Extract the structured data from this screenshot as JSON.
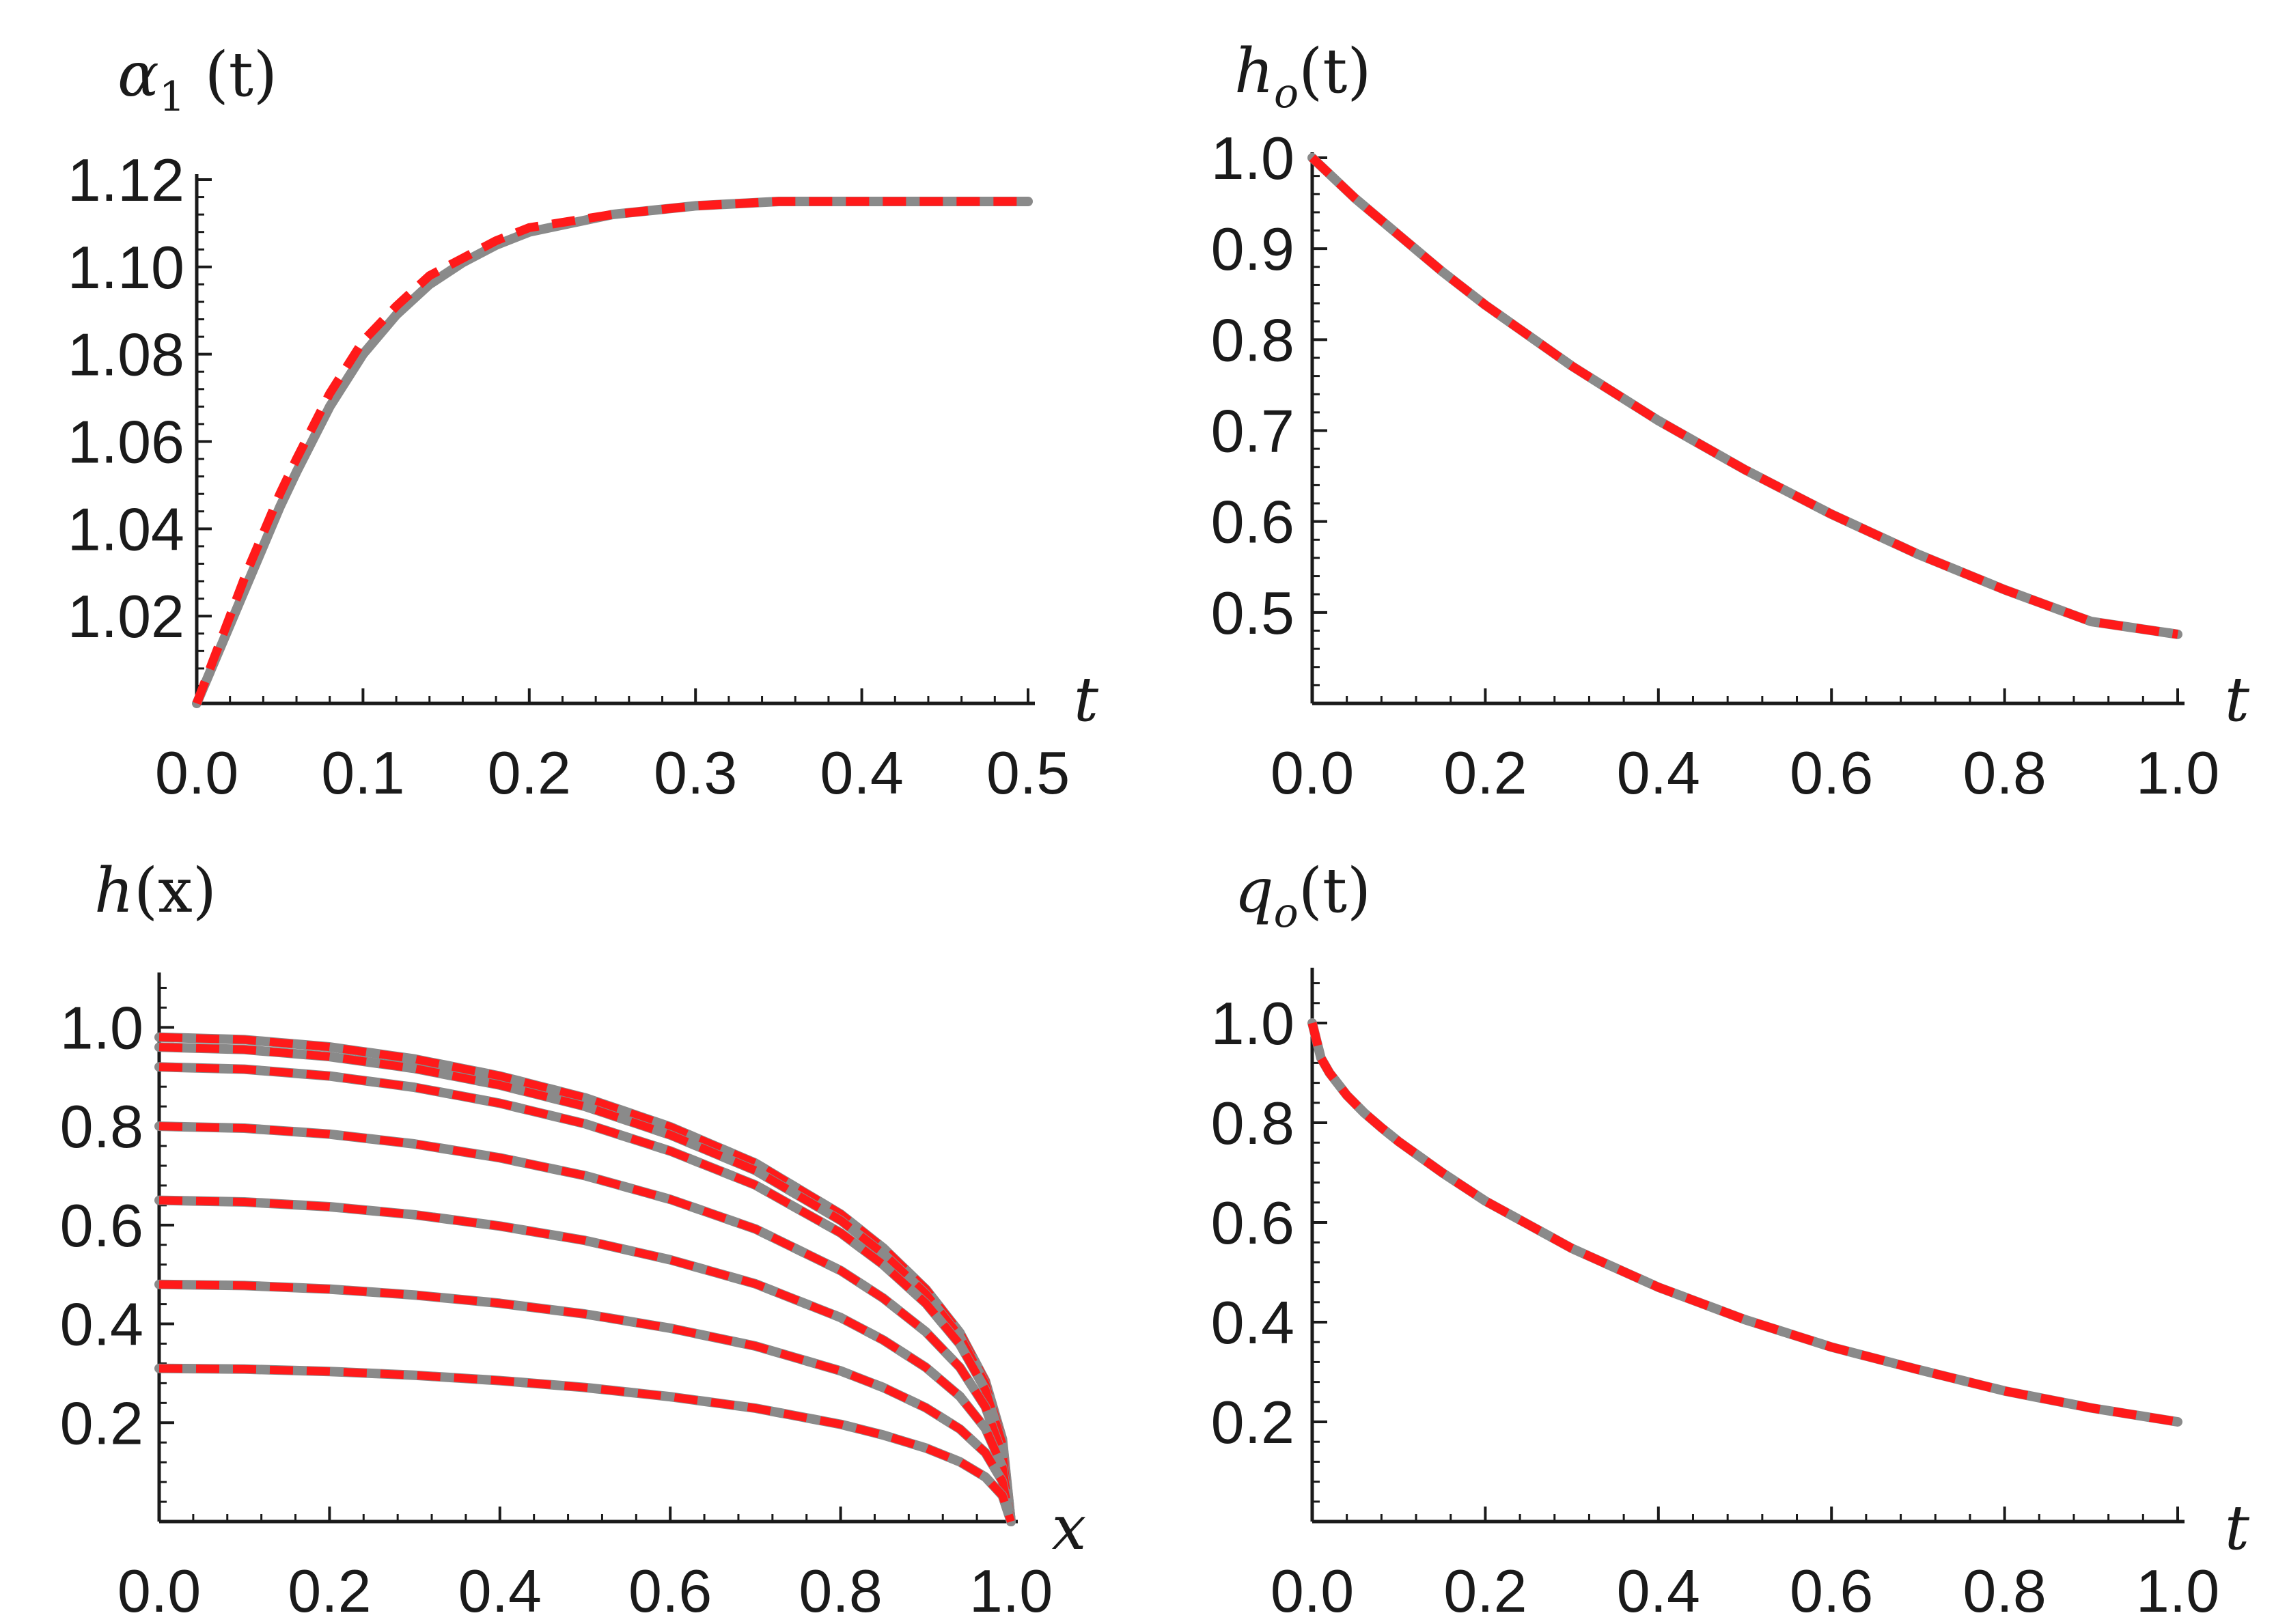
{
  "chart_data": [
    {
      "type": "line",
      "ylabel": "α1 (t)",
      "ylabel_parts": {
        "base": "α",
        "sub": "1",
        "arg": " (t)"
      },
      "xlabel": "t",
      "xlim": [
        0,
        0.5
      ],
      "ylim": [
        1.0,
        1.12
      ],
      "xticks": [
        "0.0",
        "0.1",
        "0.2",
        "0.3",
        "0.4",
        "0.5"
      ],
      "yticks": [
        "1.02",
        "1.04",
        "1.06",
        "1.08",
        "1.10",
        "1.12"
      ],
      "series": [
        {
          "style": "solid",
          "color": "#8a8a8a",
          "x": [
            0,
            0.01,
            0.02,
            0.03,
            0.04,
            0.05,
            0.06,
            0.08,
            0.1,
            0.12,
            0.14,
            0.16,
            0.18,
            0.2,
            0.25,
            0.3,
            0.35,
            0.4,
            0.45,
            0.5
          ],
          "y": [
            1.0,
            1.009,
            1.018,
            1.027,
            1.036,
            1.045,
            1.053,
            1.068,
            1.08,
            1.089,
            1.096,
            1.101,
            1.105,
            1.108,
            1.112,
            1.114,
            1.115,
            1.115,
            1.115,
            1.115
          ]
        },
        {
          "style": "dashed",
          "color": "#ff1a1a",
          "x": [
            0,
            0.01,
            0.02,
            0.03,
            0.04,
            0.05,
            0.06,
            0.08,
            0.1,
            0.12,
            0.14,
            0.16,
            0.18,
            0.2,
            0.25,
            0.3,
            0.35,
            0.4,
            0.45,
            0.5
          ],
          "y": [
            1.0,
            1.01,
            1.02,
            1.03,
            1.039,
            1.048,
            1.056,
            1.071,
            1.083,
            1.091,
            1.098,
            1.102,
            1.106,
            1.109,
            1.112,
            1.114,
            1.115,
            1.115,
            1.115,
            1.115
          ]
        }
      ]
    },
    {
      "type": "line",
      "ylabel": "ho(t)",
      "ylabel_parts": {
        "base": "h",
        "sub": "o",
        "arg": "(t)"
      },
      "xlabel": "t",
      "xlim": [
        0,
        1.0
      ],
      "ylim": [
        0.4,
        1.0
      ],
      "xticks": [
        "0.0",
        "0.2",
        "0.4",
        "0.6",
        "0.8",
        "1.0"
      ],
      "yticks": [
        "0.5",
        "0.6",
        "0.7",
        "0.8",
        "0.9",
        "1.0"
      ],
      "series": [
        {
          "style": "solid",
          "color": "#8a8a8a",
          "x": [
            0,
            0.05,
            0.1,
            0.15,
            0.2,
            0.3,
            0.4,
            0.5,
            0.6,
            0.7,
            0.8,
            0.9,
            1.0
          ],
          "y": [
            1.0,
            0.955,
            0.915,
            0.875,
            0.838,
            0.771,
            0.711,
            0.657,
            0.608,
            0.564,
            0.525,
            0.49,
            0.476
          ]
        },
        {
          "style": "dashed",
          "color": "#ff1a1a",
          "x": [
            0,
            0.05,
            0.1,
            0.15,
            0.2,
            0.3,
            0.4,
            0.5,
            0.6,
            0.7,
            0.8,
            0.9,
            1.0
          ],
          "y": [
            1.0,
            0.955,
            0.915,
            0.875,
            0.838,
            0.771,
            0.711,
            0.657,
            0.608,
            0.564,
            0.525,
            0.49,
            0.476
          ]
        }
      ]
    },
    {
      "type": "line",
      "ylabel": "h(x)",
      "ylabel_parts": {
        "base": "h",
        "sub": "",
        "arg": "(x)"
      },
      "xlabel": "x",
      "xlim": [
        0,
        1.0
      ],
      "ylim": [
        0,
        1.1
      ],
      "xticks": [
        "0.0",
        "0.2",
        "0.4",
        "0.6",
        "0.8",
        "1.0"
      ],
      "yticks": [
        "0.2",
        "0.4",
        "0.6",
        "0.8",
        "1.0"
      ],
      "profile_heights": [
        0.98,
        0.96,
        0.92,
        0.8,
        0.65,
        0.48,
        0.31
      ],
      "profile_x": [
        0,
        0.1,
        0.2,
        0.3,
        0.4,
        0.5,
        0.6,
        0.7,
        0.8,
        0.85,
        0.9,
        0.94,
        0.97,
        0.99,
        1.0
      ],
      "profile_shape": [
        1.0,
        0.995,
        0.98,
        0.955,
        0.92,
        0.875,
        0.815,
        0.74,
        0.635,
        0.565,
        0.48,
        0.39,
        0.29,
        0.17,
        0.0
      ]
    },
    {
      "type": "line",
      "ylabel": "qo(t)",
      "ylabel_parts": {
        "base": "q",
        "sub": "o",
        "arg": "(t)"
      },
      "xlabel": "t",
      "xlim": [
        0,
        1.0
      ],
      "ylim": [
        0,
        1.1
      ],
      "xticks": [
        "0.0",
        "0.2",
        "0.4",
        "0.6",
        "0.8",
        "1.0"
      ],
      "yticks": [
        "0.2",
        "0.4",
        "0.6",
        "0.8",
        "1.0"
      ],
      "series": [
        {
          "style": "solid",
          "color": "#8a8a8a",
          "x": [
            0,
            0.01,
            0.02,
            0.04,
            0.06,
            0.08,
            0.1,
            0.15,
            0.2,
            0.3,
            0.4,
            0.5,
            0.6,
            0.7,
            0.8,
            0.9,
            1.0
          ],
          "y": [
            1.0,
            0.93,
            0.9,
            0.855,
            0.82,
            0.79,
            0.762,
            0.7,
            0.643,
            0.548,
            0.47,
            0.405,
            0.35,
            0.305,
            0.262,
            0.228,
            0.2
          ]
        },
        {
          "style": "dashed",
          "color": "#ff1a1a",
          "x": [
            0,
            0.01,
            0.02,
            0.04,
            0.06,
            0.08,
            0.1,
            0.15,
            0.2,
            0.3,
            0.4,
            0.5,
            0.6,
            0.7,
            0.8,
            0.9,
            1.0
          ],
          "y": [
            1.0,
            0.93,
            0.9,
            0.855,
            0.82,
            0.79,
            0.762,
            0.7,
            0.643,
            0.548,
            0.47,
            0.405,
            0.35,
            0.305,
            0.262,
            0.228,
            0.2
          ]
        }
      ]
    }
  ]
}
